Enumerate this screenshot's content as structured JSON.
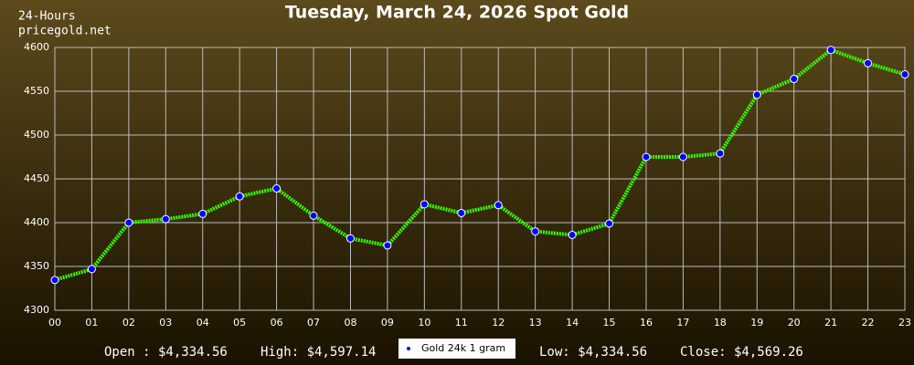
{
  "header": {
    "line1": "24-Hours",
    "line2": "pricegold.net"
  },
  "chart_data": {
    "type": "line",
    "title": "Tuesday, March 24, 2026 Spot Gold",
    "categories": [
      "00",
      "01",
      "02",
      "03",
      "04",
      "05",
      "06",
      "07",
      "08",
      "09",
      "10",
      "11",
      "12",
      "13",
      "14",
      "15",
      "16",
      "17",
      "18",
      "19",
      "20",
      "21",
      "22",
      "23"
    ],
    "series": [
      {
        "name": "Gold 24k 1 gram",
        "color": "#33ff00",
        "marker_color": "#0000ff",
        "values": [
          4334.56,
          4347,
          4400,
          4404,
          4410,
          4430,
          4439,
          4408,
          4382,
          4374,
          4421,
          4411,
          4420,
          4390,
          4386,
          4399,
          4475,
          4475,
          4479,
          4546,
          4564,
          4597.14,
          4582,
          4569.26
        ]
      }
    ],
    "ylim": [
      4300,
      4600
    ],
    "yticks": [
      4300,
      4350,
      4400,
      4450,
      4500,
      4550,
      4600
    ],
    "grid": true
  },
  "footer": {
    "open": "Open : $4,334.56",
    "high": "High: $4,597.14",
    "low": "Low: $4,334.56",
    "close": "Close: $4,569.26"
  }
}
